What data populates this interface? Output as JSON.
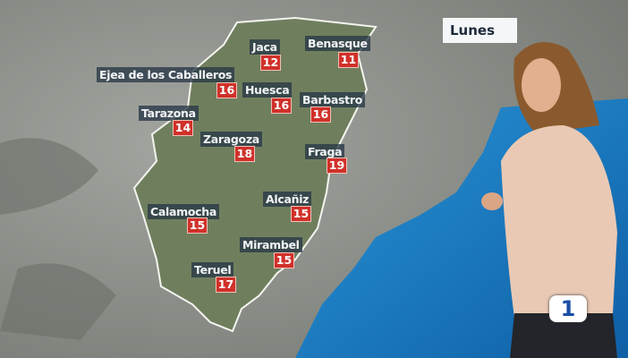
{
  "day_label": "Lunes",
  "channel_logo": "1",
  "colors": {
    "temp_badge": "#d0312a",
    "label_bg": "#28374a",
    "sea": "#1e7fc4",
    "region": "#6f7f5e"
  },
  "cities": [
    {
      "name": "Jaca",
      "temp": "12"
    },
    {
      "name": "Benasque",
      "temp": "11"
    },
    {
      "name": "Ejea de los Caballeros",
      "temp": "16"
    },
    {
      "name": "Huesca",
      "temp": "16"
    },
    {
      "name": "Barbastro",
      "temp": "16"
    },
    {
      "name": "Tarazona",
      "temp": "14"
    },
    {
      "name": "Zaragoza",
      "temp": "18"
    },
    {
      "name": "Fraga",
      "temp": "19"
    },
    {
      "name": "Calamocha",
      "temp": "15"
    },
    {
      "name": "Alcañiz",
      "temp": "15"
    },
    {
      "name": "Mirambel",
      "temp": "15"
    },
    {
      "name": "Teruel",
      "temp": "17"
    }
  ]
}
